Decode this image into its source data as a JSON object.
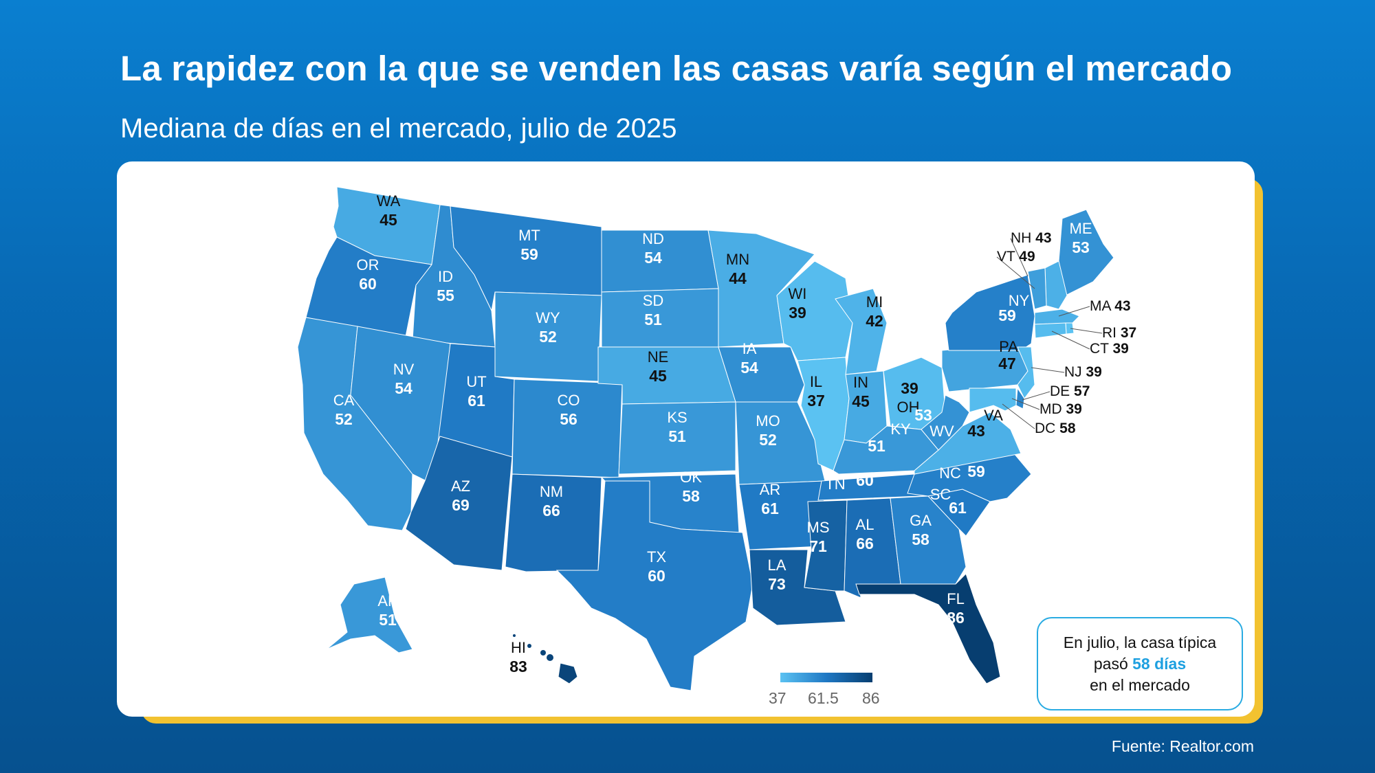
{
  "title": "La rapidez con la que se venden las casas varía según el mercado",
  "subtitle": "Mediana de días en el mercado, julio de 2025",
  "source": "Fuente: Realtor.com",
  "info": {
    "line1": "En julio, la casa típica",
    "line2_prefix": "pasó ",
    "line2_highlight": "58 días",
    "line3": "en el mercado"
  },
  "legend": {
    "min_label": "37",
    "mid_label": "61.5",
    "max_label": "86",
    "min": 37,
    "max": 86
  },
  "colors": {
    "accent_yellow": "#f2c230",
    "highlight_blue": "#1ea0e0",
    "scale_low": "#5bc2f2",
    "scale_mid": "#1f78c4",
    "scale_high": "#073e70"
  },
  "states": [
    {
      "abbr": "WA",
      "value": "45"
    },
    {
      "abbr": "OR",
      "value": "60"
    },
    {
      "abbr": "CA",
      "value": "52"
    },
    {
      "abbr": "ID",
      "value": "55"
    },
    {
      "abbr": "NV",
      "value": "54"
    },
    {
      "abbr": "MT",
      "value": "59"
    },
    {
      "abbr": "WY",
      "value": "52"
    },
    {
      "abbr": "UT",
      "value": "61"
    },
    {
      "abbr": "AZ",
      "value": "69"
    },
    {
      "abbr": "CO",
      "value": "56"
    },
    {
      "abbr": "NM",
      "value": "66"
    },
    {
      "abbr": "ND",
      "value": "54"
    },
    {
      "abbr": "SD",
      "value": "51"
    },
    {
      "abbr": "NE",
      "value": "45"
    },
    {
      "abbr": "KS",
      "value": "51"
    },
    {
      "abbr": "OK",
      "value": "58"
    },
    {
      "abbr": "TX",
      "value": "60"
    },
    {
      "abbr": "MN",
      "value": "44"
    },
    {
      "abbr": "IA",
      "value": "54"
    },
    {
      "abbr": "MO",
      "value": "52"
    },
    {
      "abbr": "AR",
      "value": "61"
    },
    {
      "abbr": "LA",
      "value": "73"
    },
    {
      "abbr": "WI",
      "value": "39"
    },
    {
      "abbr": "IL",
      "value": "37"
    },
    {
      "abbr": "MI",
      "value": "42"
    },
    {
      "abbr": "IN",
      "value": "45"
    },
    {
      "abbr": "OH",
      "value": "39"
    },
    {
      "abbr": "KY",
      "value": "51"
    },
    {
      "abbr": "TN",
      "value": "60"
    },
    {
      "abbr": "MS",
      "value": "71"
    },
    {
      "abbr": "AL",
      "value": "66"
    },
    {
      "abbr": "GA",
      "value": "58"
    },
    {
      "abbr": "FL",
      "value": "86"
    },
    {
      "abbr": "SC",
      "value": "61"
    },
    {
      "abbr": "NC",
      "value": "59"
    },
    {
      "abbr": "VA",
      "value": "43"
    },
    {
      "abbr": "WV",
      "value": "53"
    },
    {
      "abbr": "PA",
      "value": "47"
    },
    {
      "abbr": "NY",
      "value": "59"
    },
    {
      "abbr": "ME",
      "value": "53"
    },
    {
      "abbr": "AK",
      "value": "51"
    },
    {
      "abbr": "HI",
      "value": "83"
    },
    {
      "abbr": "NH",
      "value": "43"
    },
    {
      "abbr": "VT",
      "value": "49"
    },
    {
      "abbr": "MA",
      "value": "43"
    },
    {
      "abbr": "RI",
      "value": "37"
    },
    {
      "abbr": "CT",
      "value": "39"
    },
    {
      "abbr": "NJ",
      "value": "39"
    },
    {
      "abbr": "DE",
      "value": "57"
    },
    {
      "abbr": "MD",
      "value": "39"
    },
    {
      "abbr": "DC",
      "value": "58"
    }
  ]
}
